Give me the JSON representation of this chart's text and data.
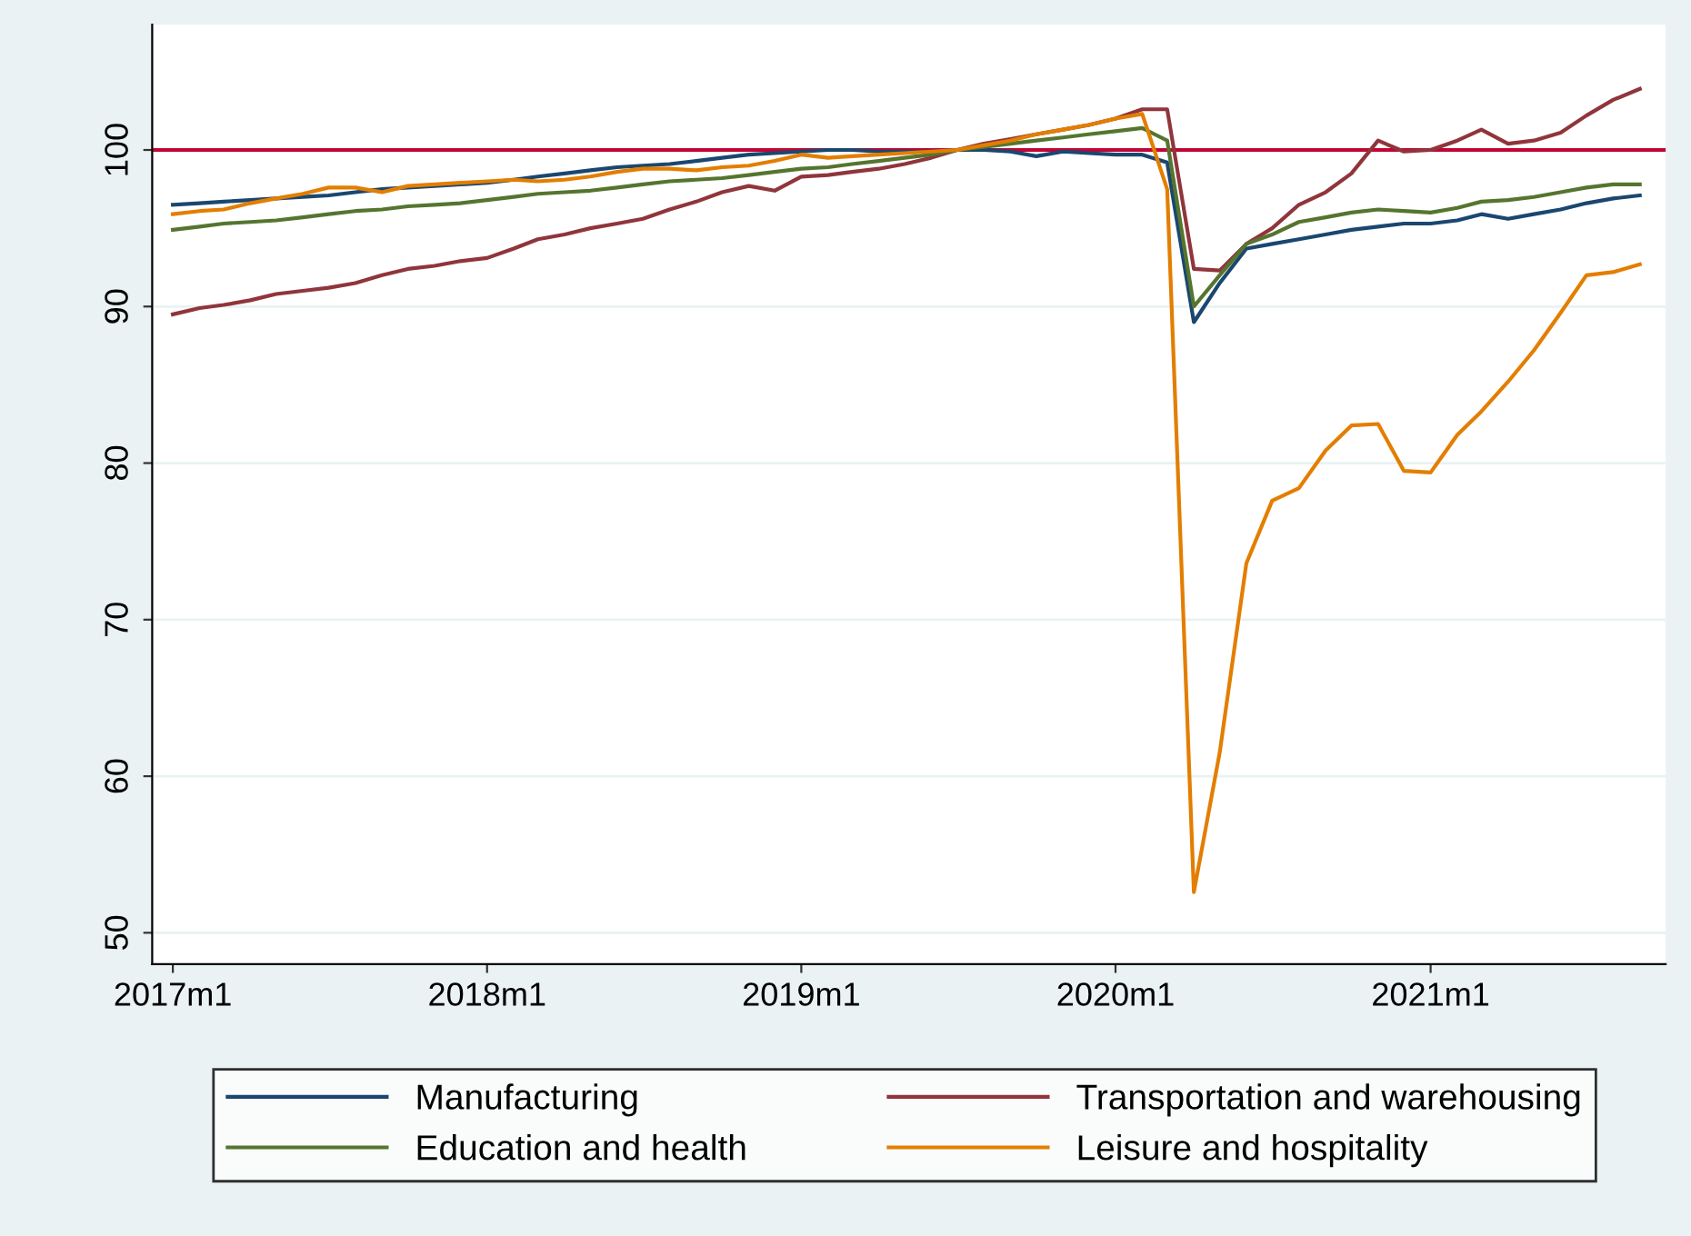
{
  "chart_data": {
    "type": "line",
    "x": [
      "2017-01",
      "2017-02",
      "2017-03",
      "2017-04",
      "2017-05",
      "2017-06",
      "2017-07",
      "2017-08",
      "2017-09",
      "2017-10",
      "2017-11",
      "2017-12",
      "2018-01",
      "2018-02",
      "2018-03",
      "2018-04",
      "2018-05",
      "2018-06",
      "2018-07",
      "2018-08",
      "2018-09",
      "2018-10",
      "2018-11",
      "2018-12",
      "2019-01",
      "2019-02",
      "2019-03",
      "2019-04",
      "2019-05",
      "2019-06",
      "2019-07",
      "2019-08",
      "2019-09",
      "2019-10",
      "2019-11",
      "2019-12",
      "2020-01",
      "2020-02",
      "2020-03",
      "2020-04",
      "2020-05",
      "2020-06",
      "2020-07",
      "2020-08",
      "2020-09",
      "2020-10",
      "2020-11",
      "2020-12",
      "2021-01",
      "2021-02",
      "2021-03",
      "2021-04",
      "2021-05",
      "2021-06",
      "2021-07",
      "2021-08",
      "2021-09"
    ],
    "series": [
      {
        "name": "Manufacturing",
        "color": "#1a476f",
        "values": [
          96.5,
          96.6,
          96.7,
          96.8,
          96.9,
          97.0,
          97.1,
          97.3,
          97.5,
          97.6,
          97.7,
          97.8,
          97.9,
          98.1,
          98.3,
          98.5,
          98.7,
          98.9,
          99.0,
          99.1,
          99.3,
          99.5,
          99.7,
          99.8,
          99.9,
          100.0,
          100.0,
          99.9,
          99.9,
          99.9,
          100.0,
          100.0,
          99.9,
          99.6,
          99.9,
          99.8,
          99.7,
          99.7,
          99.2,
          89.0,
          91.5,
          93.7,
          94.0,
          94.3,
          94.6,
          94.9,
          95.1,
          95.3,
          95.3,
          95.5,
          95.9,
          95.6,
          95.9,
          96.2,
          96.6,
          96.9,
          97.1
        ]
      },
      {
        "name": "Transportation and warehousing",
        "color": "#90353b",
        "values": [
          89.5,
          89.9,
          90.1,
          90.4,
          90.8,
          91.0,
          91.2,
          91.5,
          92.0,
          92.4,
          92.6,
          92.9,
          93.1,
          93.7,
          94.3,
          94.6,
          95.0,
          95.3,
          95.6,
          96.2,
          96.7,
          97.3,
          97.7,
          97.4,
          98.3,
          98.4,
          98.6,
          98.8,
          99.1,
          99.5,
          100.0,
          100.4,
          100.7,
          101.0,
          101.3,
          101.6,
          102.0,
          102.6,
          102.6,
          92.4,
          92.3,
          94.0,
          95.0,
          96.5,
          97.3,
          98.5,
          100.6,
          99.9,
          100.0,
          100.6,
          101.3,
          100.4,
          100.6,
          101.1,
          102.2,
          103.2,
          103.9
        ]
      },
      {
        "name": "Education and health",
        "color": "#55752f",
        "values": [
          94.9,
          95.1,
          95.3,
          95.4,
          95.5,
          95.7,
          95.9,
          96.1,
          96.2,
          96.4,
          96.5,
          96.6,
          96.8,
          97.0,
          97.2,
          97.3,
          97.4,
          97.6,
          97.8,
          98.0,
          98.1,
          98.2,
          98.4,
          98.6,
          98.8,
          98.9,
          99.1,
          99.3,
          99.5,
          99.7,
          100.0,
          100.2,
          100.4,
          100.6,
          100.8,
          101.0,
          101.2,
          101.4,
          100.6,
          90.0,
          92.0,
          94.0,
          94.6,
          95.4,
          95.7,
          96.0,
          96.2,
          96.1,
          96.0,
          96.3,
          96.7,
          96.8,
          97.0,
          97.3,
          97.6,
          97.8,
          97.8
        ]
      },
      {
        "name": "Leisure and hospitality",
        "color": "#e37e00",
        "values": [
          95.9,
          96.1,
          96.2,
          96.6,
          96.9,
          97.2,
          97.6,
          97.6,
          97.3,
          97.7,
          97.8,
          97.9,
          98.0,
          98.1,
          98.0,
          98.1,
          98.3,
          98.6,
          98.8,
          98.8,
          98.7,
          98.9,
          99.0,
          99.3,
          99.7,
          99.5,
          99.6,
          99.7,
          99.8,
          99.9,
          100.0,
          100.3,
          100.6,
          101.0,
          101.3,
          101.6,
          102.0,
          102.3,
          97.5,
          52.6,
          61.5,
          73.6,
          77.6,
          78.4,
          80.8,
          82.4,
          82.5,
          79.5,
          79.4,
          81.8,
          83.3,
          85.2,
          87.2,
          89.6,
          92.0,
          92.2,
          92.7
        ]
      }
    ],
    "xlim": [
      "2016-12-08",
      "2021-10-01"
    ],
    "xticks": [
      {
        "value": "2017-01",
        "label": "2017m1"
      },
      {
        "value": "2018-01",
        "label": "2018m1"
      },
      {
        "value": "2019-01",
        "label": "2019m1"
      },
      {
        "value": "2020-01",
        "label": "2020m1"
      },
      {
        "value": "2021-01",
        "label": "2021m1"
      }
    ],
    "ylim": [
      48,
      108
    ],
    "yticks": [
      50,
      60,
      70,
      80,
      90,
      100
    ],
    "ref_lines": [
      {
        "axis": "y",
        "value": 100,
        "color": "#c10534"
      }
    ],
    "grid": "y",
    "legend": "bottom",
    "marker": "none",
    "line_style": "solid"
  }
}
